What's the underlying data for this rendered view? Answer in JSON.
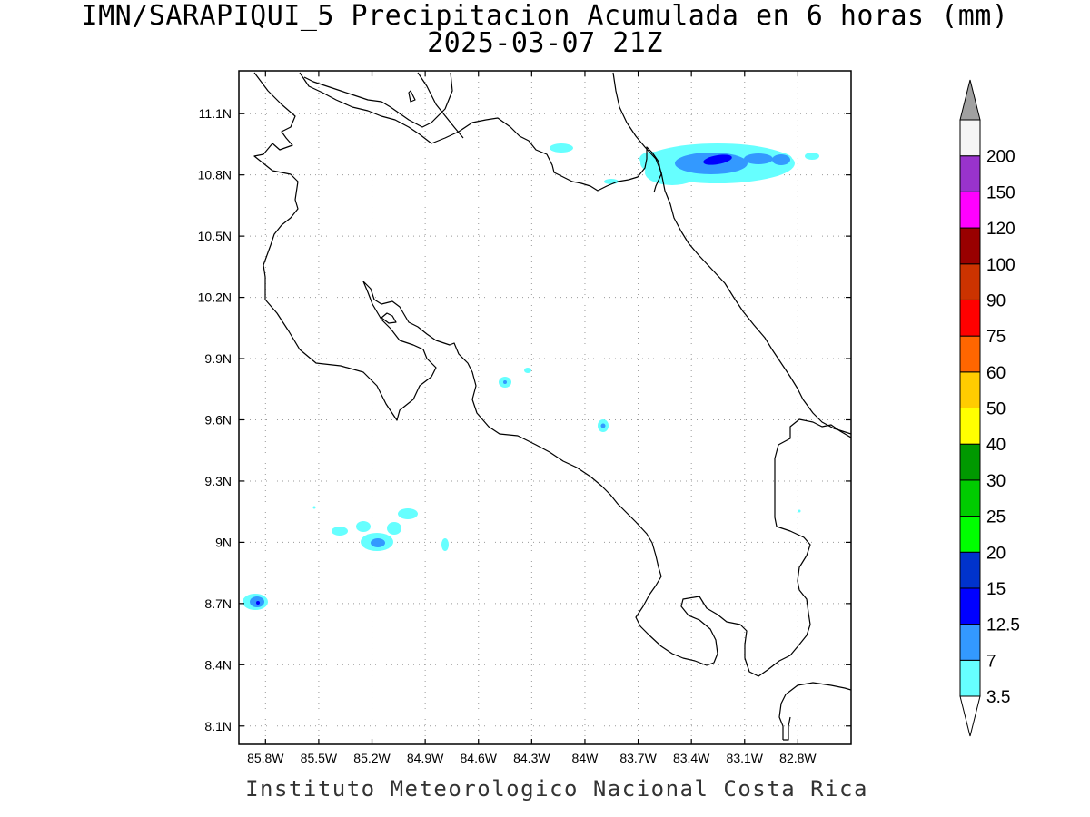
{
  "title": "IMN/SARAPIQUI_5 Precipitacion Acumulada en 6 horas (mm)",
  "subtitle": "2025-03-07 21Z",
  "credit": "Instituto Meteorologico Nacional Costa Rica",
  "lat_labels": [
    "11.1N",
    "10.8N",
    "10.5N",
    "10.2N",
    "9.9N",
    "9.6N",
    "9.3N",
    "9N",
    "8.7N",
    "8.4N",
    "8.1N"
  ],
  "lat_values": [
    11.1,
    10.8,
    10.5,
    10.2,
    9.9,
    9.6,
    9.3,
    9.0,
    8.7,
    8.4,
    8.1
  ],
  "lon_labels": [
    "85.8W",
    "85.5W",
    "85.2W",
    "84.9W",
    "84.6W",
    "84.3W",
    "84W",
    "83.7W",
    "83.4W",
    "83.1W",
    "82.8W"
  ],
  "lon_values": [
    -85.8,
    -85.5,
    -85.2,
    -84.9,
    -84.6,
    -84.3,
    -84.0,
    -83.7,
    -83.4,
    -83.1,
    -82.8
  ],
  "extent": {
    "lon_min": -85.95,
    "lon_max": -82.5,
    "lat_min": 8.01,
    "lat_max": 11.31
  },
  "colorbar": {
    "levels": [
      "3.5",
      "7",
      "12.5",
      "15",
      "20",
      "25",
      "30",
      "40",
      "50",
      "60",
      "75",
      "90",
      "100",
      "120",
      "150",
      "200"
    ],
    "colors": [
      "#66ffff",
      "#3399ff",
      "#0000ff",
      "#0033cc",
      "#00ff00",
      "#00cc00",
      "#009900",
      "#ffff00",
      "#ffcc00",
      "#ff6600",
      "#ff0000",
      "#cc3300",
      "#990000",
      "#ff00ff",
      "#9933cc",
      "#f5f5f5"
    ],
    "over_color": "#a0a0a0",
    "under_color": "#ffffff"
  },
  "colors": {
    "light_rain": "#66ffff",
    "moderate_rain": "#3399ff",
    "heavy_rain": "#0000ff"
  }
}
